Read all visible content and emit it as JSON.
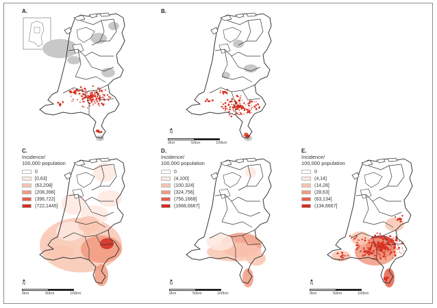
{
  "panels": [
    {
      "label": "A.",
      "has_inset": true,
      "has_legend": false,
      "has_scale": false,
      "fill": "grey-areas-plus-red-dots"
    },
    {
      "label": "B.",
      "has_inset": false,
      "has_legend": false,
      "has_scale": true,
      "fill": "grey-areas-plus-red-dots"
    },
    {
      "label": "C.",
      "has_inset": false,
      "has_legend": true,
      "has_scale": true,
      "fill": "choropleth"
    },
    {
      "label": "D.",
      "has_inset": false,
      "has_legend": true,
      "has_scale": true,
      "fill": "choropleth"
    },
    {
      "label": "E.",
      "has_inset": false,
      "has_legend": true,
      "has_scale": true,
      "fill": "choropleth"
    }
  ],
  "legends": {
    "c": {
      "title_line1": "Incidence/",
      "title_line2": "100,000 population",
      "items": [
        "0",
        "[0,63]",
        "(63,208]",
        "(208,396]",
        "(396,722]",
        "(722,1445]"
      ]
    },
    "d": {
      "title_line1": "Incidence/",
      "title_line2": "100,000 population",
      "items": [
        "0",
        "(4,100]",
        "(100,324]",
        "(324,756]",
        "(756,1668]",
        "(1668,6667]"
      ]
    },
    "e": {
      "title_line1": "Incidence/",
      "title_line2": "100,000 population",
      "items": [
        "0",
        "(4,14]",
        "(14,28]",
        "(28,63]",
        "(63,134]",
        "(134,6667]"
      ]
    }
  },
  "legend_colors": [
    "#ffffff",
    "#fde8df",
    "#f9c5b1",
    "#f19a80",
    "#e4604a",
    "#d42a22"
  ],
  "scale": {
    "labels": [
      "0km",
      "50km",
      "100km"
    ],
    "north_symbol": "N"
  },
  "colors": {
    "outline": "#333333",
    "grey_area": "#c8c8c8",
    "dot": "#d8301f",
    "frame": "#8a8a8a"
  }
}
